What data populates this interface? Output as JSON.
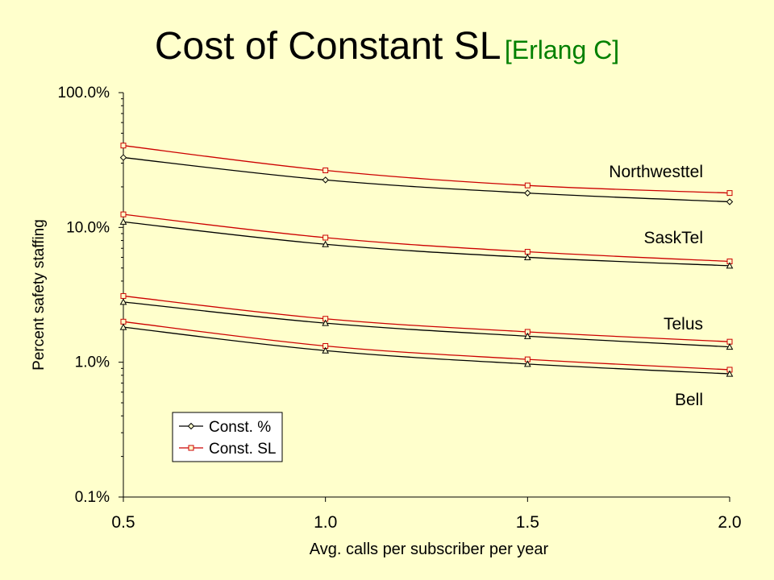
{
  "slide": {
    "title": "Cost of Constant SL",
    "subtitle": "[Erlang C]"
  },
  "chart_data": {
    "type": "line",
    "xlabel": "Avg. calls per subscriber per year",
    "ylabel": "Percent safety staffing",
    "x": [
      0.5,
      1.0,
      1.5,
      2.0
    ],
    "xticks": [
      "0.5",
      "1.0",
      "1.5",
      "2.0"
    ],
    "xlim": [
      0.5,
      2.0
    ],
    "yscale": "log",
    "ylim": [
      0.1,
      100
    ],
    "yticks": [
      {
        "value": 100,
        "label": "100.0%"
      },
      {
        "value": 10,
        "label": "10.0%"
      },
      {
        "value": 1,
        "label": "1.0%"
      },
      {
        "value": 0.1,
        "label": "0.1%"
      }
    ],
    "grid": false,
    "legend": {
      "placement": "bottom-left",
      "entries": [
        {
          "label": "Const. %",
          "color": "#000000",
          "marker": "diamond"
        },
        {
          "label": "Const. SL",
          "color": "#cc0000",
          "marker": "square"
        }
      ]
    },
    "groups": [
      {
        "label": "Northwesttel",
        "series": [
          {
            "kind": "const_sl",
            "marker": "square",
            "color": "#cc0000",
            "values": [
              40.5,
              26.5,
              20.5,
              18.0
            ]
          },
          {
            "kind": "const_pct",
            "marker": "diamond",
            "color": "#000000",
            "values": [
              33.0,
              22.5,
              18.0,
              15.5
            ]
          }
        ]
      },
      {
        "label": "SaskTel",
        "series": [
          {
            "kind": "const_sl",
            "marker": "square",
            "color": "#cc0000",
            "values": [
              12.5,
              8.4,
              6.6,
              5.6
            ]
          },
          {
            "kind": "const_pct",
            "marker": "triangle",
            "color": "#000000",
            "values": [
              11.0,
              7.5,
              6.0,
              5.2
            ]
          }
        ]
      },
      {
        "label": "Telus",
        "series": [
          {
            "kind": "const_sl",
            "marker": "square",
            "color": "#cc0000",
            "values": [
              3.1,
              2.1,
              1.68,
              1.42
            ]
          },
          {
            "kind": "const_pct",
            "marker": "triangle",
            "color": "#000000",
            "values": [
              2.8,
              1.95,
              1.56,
              1.3
            ]
          }
        ]
      },
      {
        "label": "Bell",
        "series": [
          {
            "kind": "const_sl",
            "marker": "square",
            "color": "#cc0000",
            "values": [
              2.0,
              1.32,
              1.05,
              0.88
            ]
          },
          {
            "kind": "const_pct",
            "marker": "triangle",
            "color": "#000000",
            "values": [
              1.82,
              1.22,
              0.97,
              0.82
            ]
          }
        ]
      }
    ]
  }
}
